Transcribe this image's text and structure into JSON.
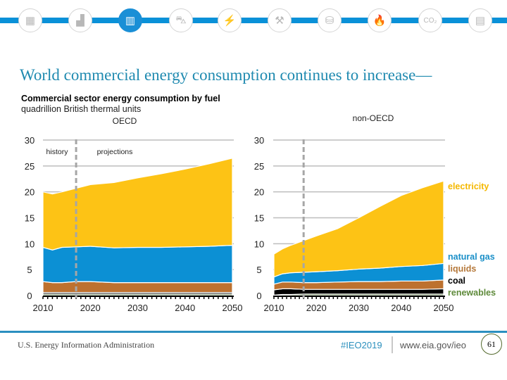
{
  "nav": {
    "icons": [
      {
        "name": "all-sectors-icon",
        "glyph": "▦",
        "active": false
      },
      {
        "name": "industrial-icon",
        "glyph": "▟",
        "active": false
      },
      {
        "name": "commercial-building-icon",
        "glyph": "▥",
        "active": true
      },
      {
        "name": "transportation-car-icon",
        "glyph": "⛍",
        "active": false
      },
      {
        "name": "electricity-bolt-icon",
        "glyph": "⚡",
        "active": false
      },
      {
        "name": "coal-pick-icon",
        "glyph": "⚒",
        "active": false
      },
      {
        "name": "oil-barrel-icon",
        "glyph": "⛁",
        "active": false
      },
      {
        "name": "natural-gas-flame-icon",
        "glyph": "🔥",
        "active": false
      },
      {
        "name": "co2-cloud-icon",
        "glyph": "CO₂",
        "active": false
      },
      {
        "name": "documents-icon",
        "glyph": "▤",
        "active": false
      }
    ]
  },
  "title": "World commercial energy consumption continues to increase—",
  "subtitle": "Commercial sector energy consumption by fuel",
  "units": "quadrillion British thermal units",
  "colors": {
    "electricity": "#fdc315",
    "natural_gas": "#0c90d4",
    "liquids": "#bd712f",
    "coal": "#000000",
    "renewables": "#5e7a48",
    "grid": "#bdbdbd",
    "dash": "#a6a6a6"
  },
  "chart_data": [
    {
      "type": "area",
      "stacked": true,
      "title": "OECD",
      "xlabel": "",
      "ylabel": "quadrillion British thermal units",
      "xlim": [
        2010,
        2050
      ],
      "ylim": [
        0,
        30
      ],
      "x_ticks": [
        "2010",
        "2020",
        "2030",
        "2040",
        "2050"
      ],
      "y_ticks": [
        "0",
        "5",
        "10",
        "15",
        "20",
        "25",
        "30"
      ],
      "grid": true,
      "divider_year": 2017,
      "annotations": [
        "history",
        "projections"
      ],
      "x": [
        2010,
        2012,
        2014,
        2017,
        2020,
        2025,
        2030,
        2035,
        2040,
        2045,
        2050
      ],
      "series": [
        {
          "name": "renewables",
          "values": [
            0.3,
            0.3,
            0.3,
            0.3,
            0.3,
            0.3,
            0.3,
            0.3,
            0.3,
            0.3,
            0.3
          ]
        },
        {
          "name": "coal",
          "values": [
            0.3,
            0.3,
            0.3,
            0.3,
            0.3,
            0.3,
            0.3,
            0.3,
            0.3,
            0.3,
            0.3
          ]
        },
        {
          "name": "liquids",
          "values": [
            2.1,
            1.9,
            1.9,
            2.1,
            2.1,
            1.9,
            1.9,
            1.9,
            1.9,
            1.9,
            1.9
          ]
        },
        {
          "name": "natural gas",
          "values": [
            6.6,
            6.3,
            6.8,
            6.7,
            6.8,
            6.7,
            6.8,
            6.8,
            6.9,
            7.0,
            7.2
          ]
        },
        {
          "name": "electricity",
          "values": [
            10.7,
            10.8,
            10.7,
            11.3,
            11.9,
            12.6,
            13.4,
            14.2,
            15.0,
            15.9,
            16.8
          ]
        }
      ]
    },
    {
      "type": "area",
      "stacked": true,
      "title": "non-OECD",
      "xlabel": "",
      "ylabel": "quadrillion British thermal units",
      "xlim": [
        2010,
        2050
      ],
      "ylim": [
        0,
        30
      ],
      "x_ticks": [
        "2010",
        "2020",
        "2030",
        "2040",
        "2050"
      ],
      "y_ticks": [
        "0",
        "5",
        "10",
        "15",
        "20",
        "25",
        "30"
      ],
      "grid": true,
      "divider_year": 2017,
      "legend": [
        "electricity",
        "natural gas",
        "liquids",
        "coal",
        "renewables"
      ],
      "legend_position": "right",
      "x": [
        2010,
        2012,
        2014,
        2017,
        2020,
        2025,
        2030,
        2035,
        2040,
        2045,
        2050
      ],
      "series": [
        {
          "name": "renewables",
          "values": [
            0.1,
            0.2,
            0.2,
            0.3,
            0.3,
            0.3,
            0.3,
            0.3,
            0.3,
            0.3,
            0.3
          ]
        },
        {
          "name": "coal",
          "values": [
            1.0,
            1.1,
            1.1,
            0.9,
            0.9,
            0.9,
            0.9,
            0.9,
            0.9,
            0.9,
            1.0
          ]
        },
        {
          "name": "liquids",
          "values": [
            1.1,
            1.3,
            1.3,
            1.3,
            1.3,
            1.4,
            1.5,
            1.5,
            1.6,
            1.6,
            1.7
          ]
        },
        {
          "name": "natural gas",
          "values": [
            1.4,
            1.6,
            1.8,
            2.0,
            2.1,
            2.2,
            2.4,
            2.6,
            2.8,
            3.0,
            3.2
          ]
        },
        {
          "name": "electricity",
          "values": [
            4.4,
            4.8,
            5.3,
            6.1,
            6.9,
            8.1,
            9.9,
            11.9,
            13.7,
            15.0,
            15.9
          ]
        }
      ]
    }
  ],
  "footer": {
    "agency": "U.S. Energy Information Administration",
    "hashtag": "#IEO2019",
    "url": "www.eia.gov/ieo",
    "page": "61"
  }
}
